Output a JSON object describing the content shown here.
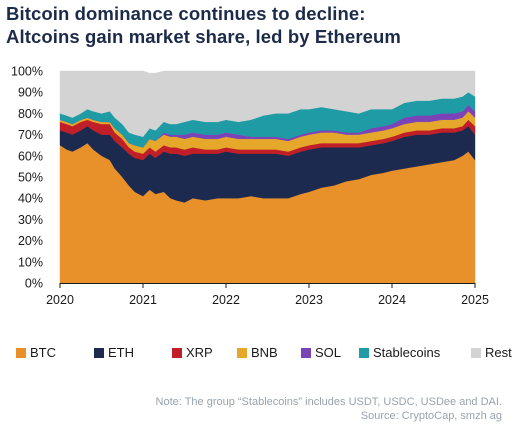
{
  "title_line1": "Bitcoin dominance continues to decline:",
  "title_line2": "Altcoins gain market share, led by Ethereum",
  "note_line1": "Note: The group “Stablecoins” includes USDT, USDC, USDee and DAI.",
  "note_line2": "Source: CryptoCap, smzh ag",
  "chart_data": {
    "type": "area",
    "stacked": true,
    "xlabel": "",
    "ylabel": "",
    "x_ticks": [
      "2020",
      "2021",
      "2022",
      "2023",
      "2024",
      "2025"
    ],
    "y_ticks": [
      "0%",
      "10%",
      "20%",
      "30%",
      "40%",
      "50%",
      "60%",
      "70%",
      "80%",
      "90%",
      "100%"
    ],
    "ylim": [
      0,
      100
    ],
    "legend_position": "bottom",
    "x": [
      2020.0,
      2020.08,
      2020.15,
      2020.25,
      2020.33,
      2020.4,
      2020.5,
      2020.6,
      2020.66,
      2020.75,
      2020.83,
      2020.9,
      2021.0,
      2021.08,
      2021.15,
      2021.25,
      2021.33,
      2021.4,
      2021.5,
      2021.6,
      2021.75,
      2021.9,
      2022.0,
      2022.15,
      2022.3,
      2022.45,
      2022.6,
      2022.75,
      2022.9,
      2023.0,
      2023.15,
      2023.3,
      2023.45,
      2023.6,
      2023.75,
      2023.9,
      2024.0,
      2024.15,
      2024.3,
      2024.45,
      2024.6,
      2024.75,
      2024.85,
      2024.92,
      2025.0
    ],
    "series": [
      {
        "name": "BTC",
        "color": "#e8912a",
        "values": [
          65,
          63,
          62,
          64,
          66,
          63,
          60,
          58,
          54,
          50,
          46,
          43,
          41,
          44,
          42,
          43,
          40,
          39,
          38,
          40,
          39,
          40,
          40,
          40,
          41,
          40,
          40,
          40,
          42,
          43,
          45,
          46,
          48,
          49,
          51,
          52,
          53,
          54,
          55,
          56,
          57,
          58,
          60,
          62,
          58
        ]
      },
      {
        "name": "ETH",
        "color": "#1c2a4f",
        "values": [
          7,
          8,
          8,
          8,
          8,
          9,
          10,
          12,
          13,
          14,
          15,
          16,
          17,
          17,
          17,
          19,
          21,
          22,
          22,
          21,
          22,
          21,
          22,
          21,
          20,
          21,
          21,
          20,
          20,
          20,
          19,
          18,
          16,
          15,
          14,
          14,
          14,
          15,
          15,
          14,
          14,
          13,
          12,
          12,
          12
        ]
      },
      {
        "name": "XRP",
        "color": "#c01f27",
        "values": [
          4,
          4,
          4,
          4,
          3,
          4,
          5,
          5,
          4,
          4,
          3,
          3,
          3,
          3,
          3,
          3,
          3,
          3,
          3,
          3,
          2,
          2,
          2,
          2,
          2,
          2,
          2,
          2,
          2,
          2,
          2,
          2,
          2,
          2,
          2,
          2,
          2,
          2,
          2,
          2,
          2,
          2,
          2,
          3,
          4
        ]
      },
      {
        "name": "BNB",
        "color": "#e6a82a",
        "values": [
          1,
          1,
          1,
          1,
          1,
          1,
          1,
          1,
          2,
          2,
          2,
          3,
          3,
          4,
          5,
          5,
          5,
          5,
          5,
          5,
          5,
          5,
          5,
          5,
          5,
          5,
          5,
          5,
          5,
          5,
          5,
          5,
          4,
          4,
          4,
          4,
          4,
          4,
          4,
          4,
          4,
          4,
          4,
          4,
          4
        ]
      },
      {
        "name": "SOL",
        "color": "#7a44b8",
        "values": [
          0,
          0,
          0,
          0,
          0,
          0,
          0,
          0,
          0,
          0,
          0,
          0,
          0,
          0,
          0,
          1,
          1,
          1,
          2,
          2,
          2,
          2,
          2,
          2,
          1,
          1,
          1,
          1,
          1,
          1,
          1,
          1,
          1,
          1,
          2,
          2,
          2,
          3,
          3,
          3,
          3,
          3,
          3,
          3,
          3
        ]
      },
      {
        "name": "Stablecoins",
        "color": "#1f9ba5",
        "values": [
          3,
          3,
          3,
          3,
          4,
          4,
          4,
          5,
          5,
          5,
          5,
          5,
          5,
          5,
          5,
          5,
          5,
          5,
          6,
          6,
          6,
          6,
          6,
          6,
          8,
          10,
          11,
          12,
          12,
          11,
          11,
          10,
          10,
          9,
          9,
          8,
          7,
          7,
          7,
          7,
          7,
          7,
          7,
          6,
          7
        ]
      },
      {
        "name": "Rest",
        "color": "#d3d3d3",
        "values": [
          20,
          21,
          22,
          20,
          18,
          19,
          20,
          19,
          22,
          25,
          29,
          30,
          31,
          26,
          27,
          24,
          25,
          25,
          24,
          23,
          24,
          24,
          23,
          24,
          23,
          21,
          20,
          20,
          18,
          18,
          17,
          18,
          19,
          20,
          18,
          18,
          18,
          15,
          14,
          14,
          13,
          13,
          12,
          10,
          12
        ]
      }
    ]
  }
}
